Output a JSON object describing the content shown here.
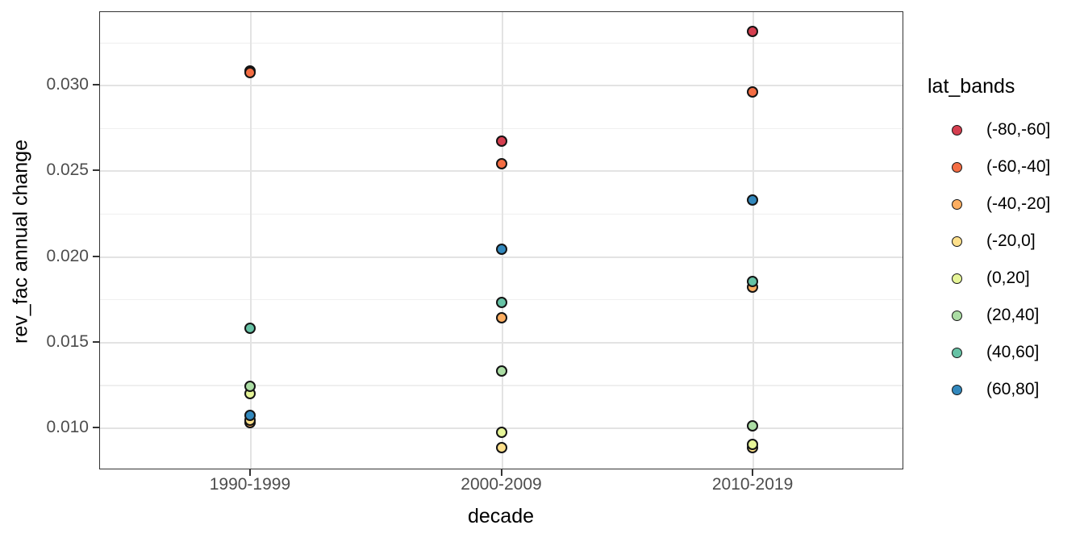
{
  "chart_data": {
    "type": "scatter",
    "title": "",
    "xlabel": "decade",
    "ylabel": "rev_fac annual change",
    "legend_title": "lat_bands",
    "legend_position": "right",
    "grid": true,
    "x_categories": [
      "1990-1999",
      "2000-2009",
      "2010-2019"
    ],
    "ylim": [
      0.00755,
      0.0343
    ],
    "y_ticks": [
      0.01,
      0.015,
      0.02,
      0.025,
      0.03
    ],
    "y_minor_ticks": [
      0.0125,
      0.0175,
      0.0225,
      0.0275,
      0.0325
    ],
    "series": [
      {
        "name": "(-80,-60]",
        "color": "#D53E4F",
        "values": [
          0.0308,
          0.0267,
          0.0331
        ]
      },
      {
        "name": "(-60,-40]",
        "color": "#F46D43",
        "values": [
          0.0307,
          0.0254,
          0.0296
        ]
      },
      {
        "name": "(-40,-20]",
        "color": "#FDAE61",
        "values": [
          0.0103,
          0.0164,
          0.0182
        ]
      },
      {
        "name": "(-20,0]",
        "color": "#FEE08B",
        "values": [
          0.0104,
          0.0088,
          0.0088
        ]
      },
      {
        "name": "(0,20]",
        "color": "#E6F598",
        "values": [
          0.012,
          0.0097,
          0.009
        ]
      },
      {
        "name": "(20,40]",
        "color": "#ABDDA4",
        "values": [
          0.0124,
          0.0133,
          0.0101
        ]
      },
      {
        "name": "(40,60]",
        "color": "#66C2A5",
        "values": [
          0.0158,
          0.0173,
          0.0185
        ]
      },
      {
        "name": "(60,80]",
        "color": "#3288BD",
        "values": [
          0.0107,
          0.0204,
          0.0233
        ]
      }
    ],
    "style": {
      "panel_border": "#333333",
      "grid_major": "#e3e3e3",
      "grid_minor": "#efefef",
      "axis_text": "#4d4d4d",
      "point_stroke": "#141414"
    }
  }
}
